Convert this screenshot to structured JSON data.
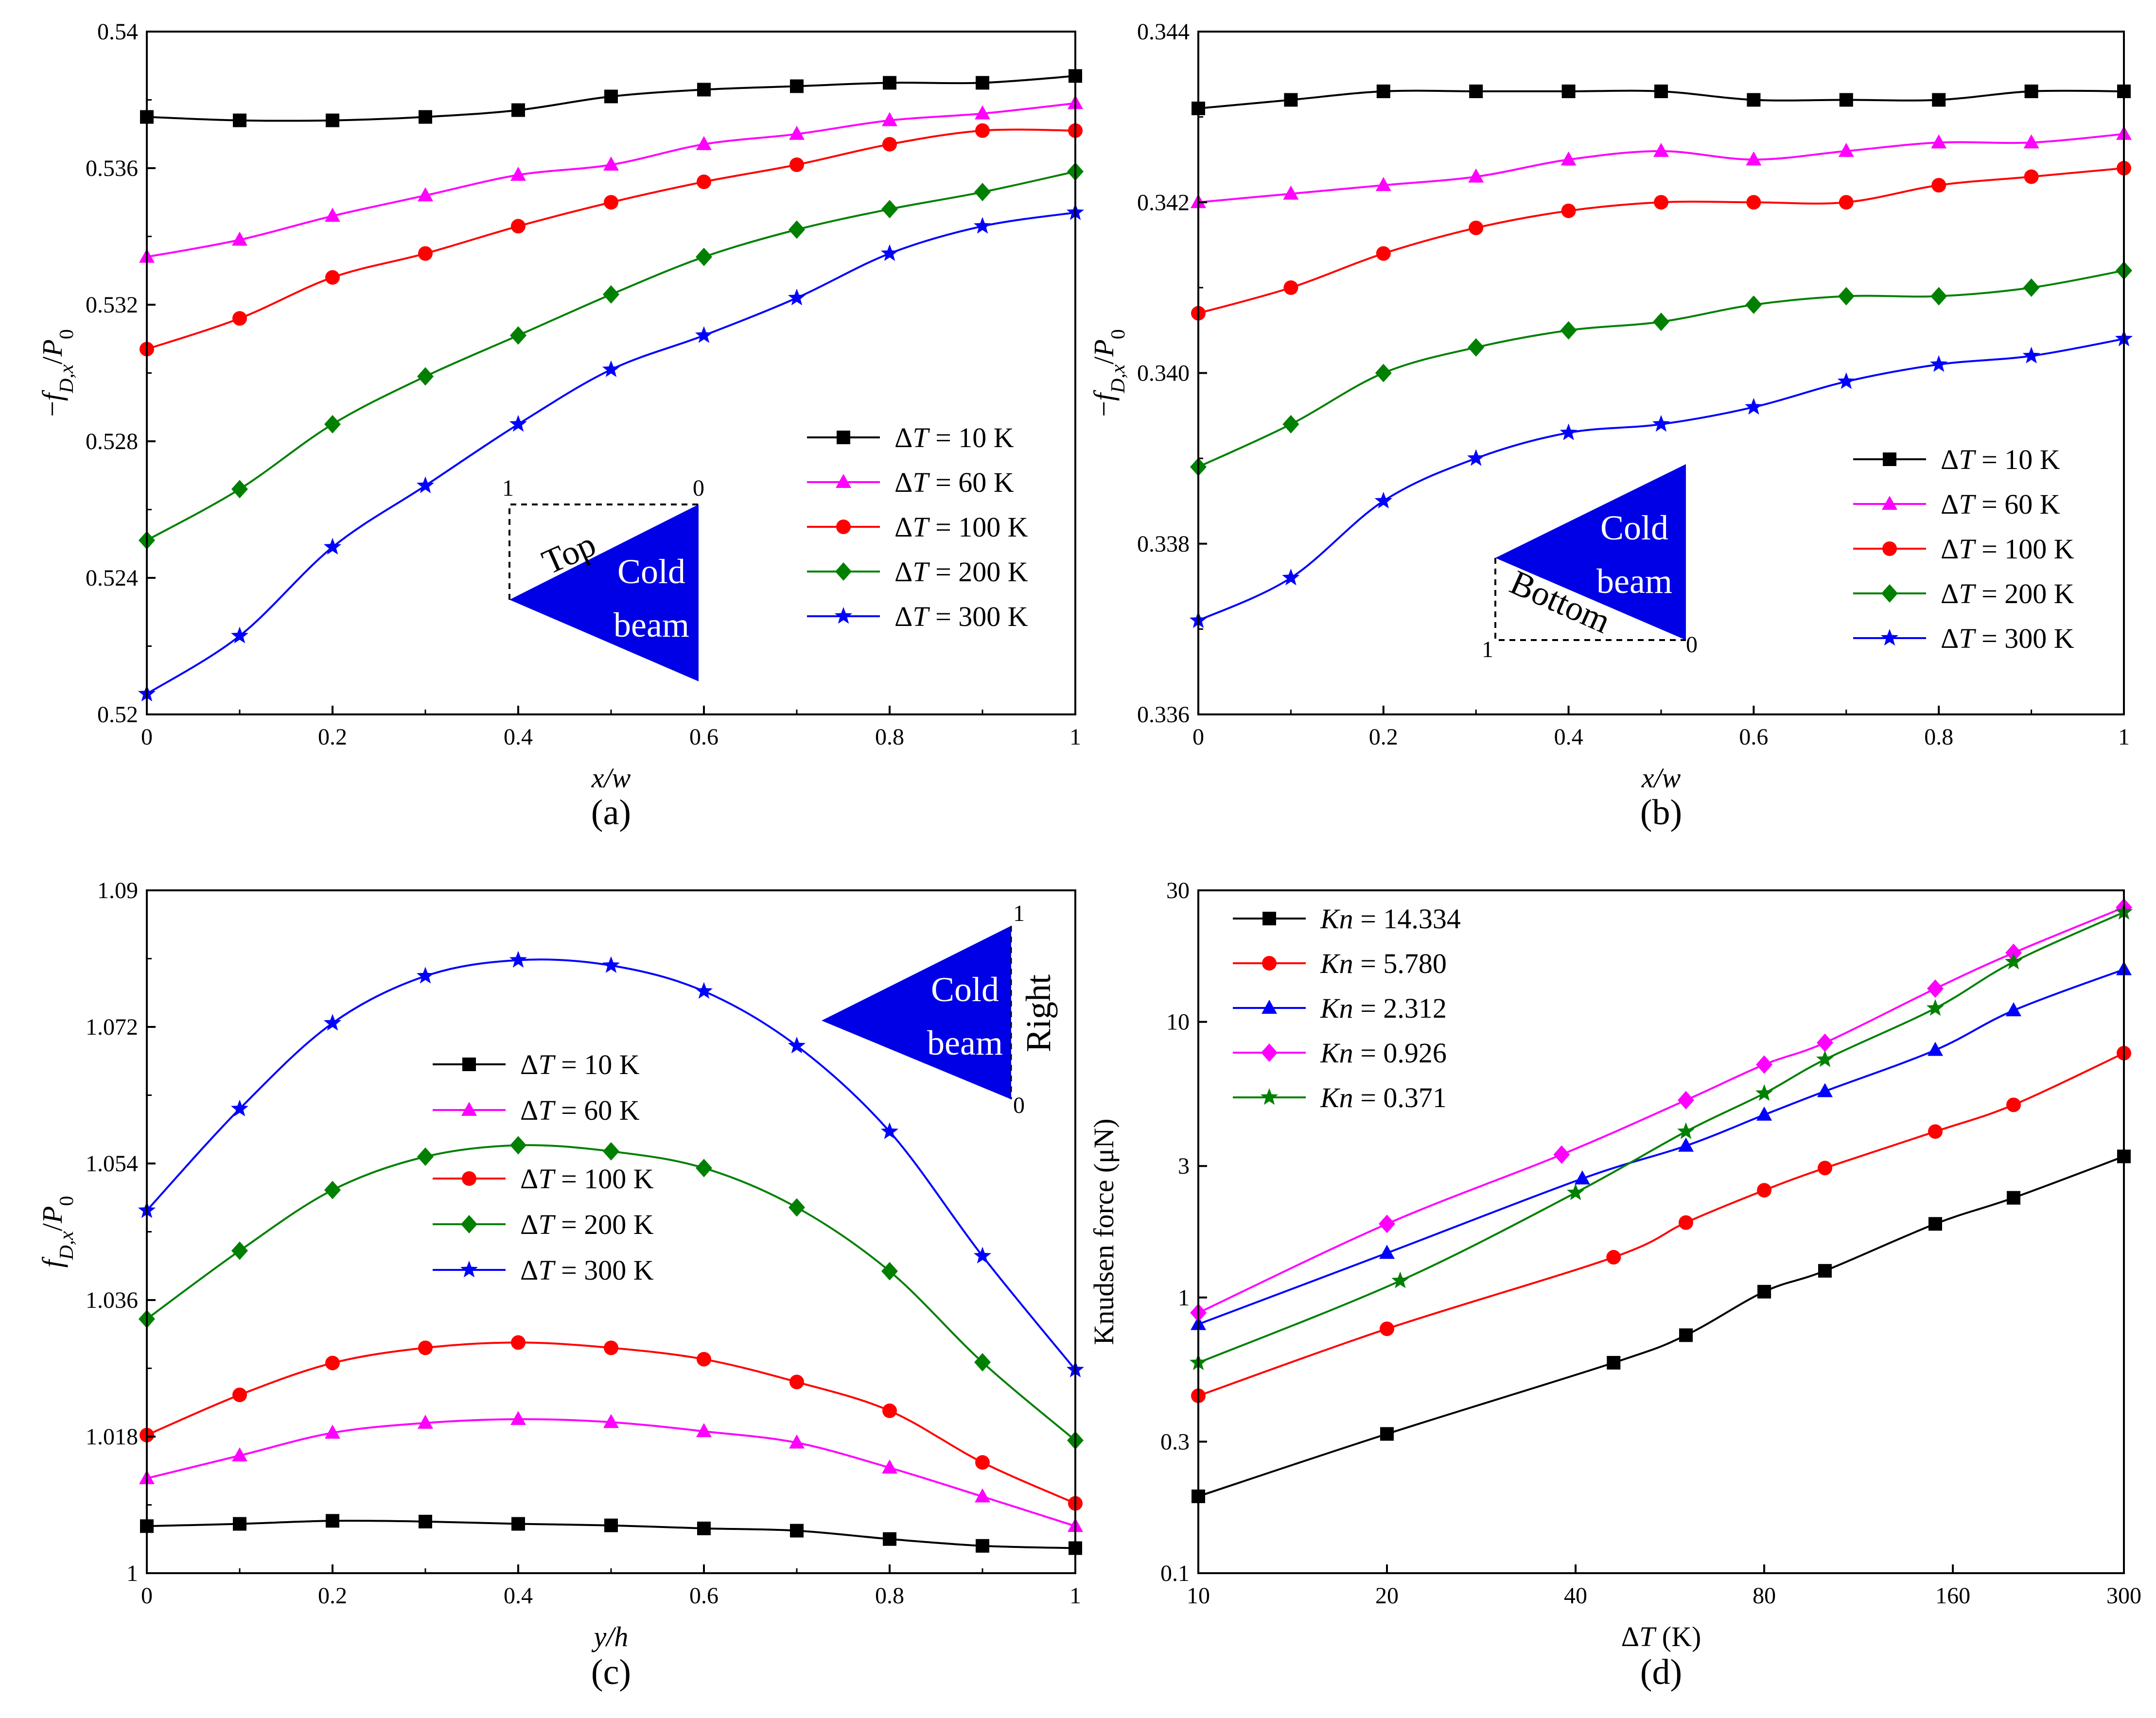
{
  "chart_data": [
    {
      "panel": "a",
      "type": "line",
      "panel_label": "(a)",
      "xlabel": "x/w",
      "ylabel": "−f_D,x/P_0",
      "xlim": [
        0,
        1
      ],
      "ylim": [
        0.52,
        0.54
      ],
      "xticks": [
        0,
        0.2,
        0.4,
        0.6,
        0.8,
        1
      ],
      "xtick_labels": [
        "0",
        "0.2",
        "0.4",
        "0.6",
        "0.8",
        "1"
      ],
      "yticks": [
        0.52,
        0.524,
        0.528,
        0.532,
        0.536,
        0.54
      ],
      "ytick_labels": [
        "0.52",
        "0.524",
        "0.528",
        "0.532",
        "0.536",
        "0.54"
      ],
      "x": [
        0,
        0.1,
        0.2,
        0.3,
        0.4,
        0.5,
        0.6,
        0.7,
        0.8,
        0.9,
        1
      ],
      "series": [
        {
          "name": "ΔT = 10 K",
          "color": "#000000",
          "marker": "square",
          "values": [
            0.5375,
            0.5374,
            0.5374,
            0.5375,
            0.5377,
            0.5381,
            0.5383,
            0.5384,
            0.5385,
            0.5385,
            0.5387
          ]
        },
        {
          "name": "ΔT = 60 K",
          "color": "#ff00ff",
          "marker": "triangle",
          "values": [
            0.5334,
            0.5339,
            0.5346,
            0.5352,
            0.5358,
            0.5361,
            0.5367,
            0.537,
            0.5374,
            0.5376,
            0.5379
          ]
        },
        {
          "name": "ΔT = 100 K",
          "color": "#ff0000",
          "marker": "circle",
          "values": [
            0.5307,
            0.5316,
            0.5328,
            0.5335,
            0.5343,
            0.535,
            0.5356,
            0.5361,
            0.5367,
            0.5371,
            0.5371
          ]
        },
        {
          "name": "ΔT = 200 K",
          "color": "#008000",
          "marker": "diamond",
          "values": [
            0.5251,
            0.5266,
            0.5285,
            0.5299,
            0.5311,
            0.5323,
            0.5334,
            0.5342,
            0.5348,
            0.5353,
            0.5359
          ]
        },
        {
          "name": "ΔT = 300 K",
          "color": "#0000ff",
          "marker": "star",
          "values": [
            0.5206,
            0.5223,
            0.5249,
            0.5267,
            0.5285,
            0.5301,
            0.5311,
            0.5322,
            0.5335,
            0.5343,
            0.5347
          ]
        }
      ],
      "legend_position": "lower-right",
      "inset": {
        "texts": [
          "Top",
          "Cold",
          "beam",
          "1",
          "0"
        ]
      }
    },
    {
      "panel": "b",
      "type": "line",
      "panel_label": "(b)",
      "xlabel": "x/w",
      "ylabel": "−f_D,x/P_0",
      "xlim": [
        0,
        1
      ],
      "ylim": [
        0.336,
        0.344
      ],
      "xticks": [
        0,
        0.2,
        0.4,
        0.6,
        0.8,
        1
      ],
      "xtick_labels": [
        "0",
        "0.2",
        "0.4",
        "0.6",
        "0.8",
        "1"
      ],
      "yticks": [
        0.336,
        0.338,
        0.34,
        0.342,
        0.344
      ],
      "ytick_labels": [
        "0.336",
        "0.338",
        "0.340",
        "0.342",
        "0.344"
      ],
      "x": [
        0,
        0.1,
        0.2,
        0.3,
        0.4,
        0.5,
        0.6,
        0.7,
        0.8,
        0.9,
        1
      ],
      "series": [
        {
          "name": "ΔT = 10 K",
          "color": "#000000",
          "marker": "square",
          "values": [
            0.3431,
            0.3432,
            0.3433,
            0.3433,
            0.3433,
            0.3433,
            0.3432,
            0.3432,
            0.3432,
            0.3433,
            0.3433
          ]
        },
        {
          "name": "ΔT = 60 K",
          "color": "#ff00ff",
          "marker": "triangle",
          "values": [
            0.342,
            0.3421,
            0.3422,
            0.3423,
            0.3425,
            0.3426,
            0.3425,
            0.3426,
            0.3427,
            0.3427,
            0.3428
          ]
        },
        {
          "name": "ΔT = 100 K",
          "color": "#ff0000",
          "marker": "circle",
          "values": [
            0.3407,
            0.341,
            0.3414,
            0.3417,
            0.3419,
            0.342,
            0.342,
            0.342,
            0.3422,
            0.3423,
            0.3424
          ]
        },
        {
          "name": "ΔT = 200 K",
          "color": "#008000",
          "marker": "diamond",
          "values": [
            0.3389,
            0.3394,
            0.34,
            0.3403,
            0.3405,
            0.3406,
            0.3408,
            0.3409,
            0.3409,
            0.341,
            0.3412
          ]
        },
        {
          "name": "ΔT = 300 K",
          "color": "#0000ff",
          "marker": "star",
          "values": [
            0.3371,
            0.3376,
            0.3385,
            0.339,
            0.3393,
            0.3394,
            0.3396,
            0.3399,
            0.3401,
            0.3402,
            0.3404
          ]
        }
      ],
      "legend_position": "lower-right",
      "inset": {
        "texts": [
          "Cold",
          "beam",
          "Bottom",
          "1",
          "0"
        ]
      }
    },
    {
      "panel": "c",
      "type": "line",
      "panel_label": "(c)",
      "xlabel": "y/h",
      "ylabel": "f_D,x/P_0",
      "xlim": [
        0,
        1
      ],
      "ylim": [
        1,
        1.09
      ],
      "xticks": [
        0,
        0.2,
        0.4,
        0.6,
        0.8,
        1
      ],
      "xtick_labels": [
        "0",
        "0.2",
        "0.4",
        "0.6",
        "0.8",
        "1"
      ],
      "yticks": [
        1,
        1.018,
        1.036,
        1.054,
        1.072,
        1.09
      ],
      "ytick_labels": [
        "1",
        "1.018",
        "1.036",
        "1.054",
        "1.072",
        "1.09"
      ],
      "x": [
        0,
        0.1,
        0.2,
        0.3,
        0.4,
        0.5,
        0.6,
        0.7,
        0.8,
        0.9,
        1
      ],
      "series": [
        {
          "name": "ΔT = 10 K",
          "color": "#000000",
          "marker": "square",
          "values": [
            1.0062,
            1.0065,
            1.0069,
            1.0068,
            1.0065,
            1.0063,
            1.0059,
            1.0056,
            1.0045,
            1.0036,
            1.0033
          ]
        },
        {
          "name": "ΔT = 60 K",
          "color": "#ff00ff",
          "marker": "triangle",
          "values": [
            1.0125,
            1.0155,
            1.0185,
            1.0198,
            1.0203,
            1.0199,
            1.0187,
            1.0172,
            1.0139,
            1.0101,
            1.0062
          ]
        },
        {
          "name": "ΔT = 100 K",
          "color": "#ff0000",
          "marker": "circle",
          "values": [
            1.0182,
            1.0235,
            1.0277,
            1.0297,
            1.0304,
            1.0297,
            1.0282,
            1.0252,
            1.0214,
            1.0146,
            1.0092
          ]
        },
        {
          "name": "ΔT = 200 K",
          "color": "#008000",
          "marker": "diamond",
          "values": [
            1.0335,
            1.0425,
            1.0505,
            1.0549,
            1.0564,
            1.0556,
            1.0534,
            1.0482,
            1.0398,
            1.0278,
            1.0175
          ]
        },
        {
          "name": "ΔT = 300 K",
          "color": "#0000ff",
          "marker": "star",
          "values": [
            1.0478,
            1.0612,
            1.0725,
            1.0787,
            1.0808,
            1.0801,
            1.0767,
            1.0695,
            1.0582,
            1.0418,
            1.0268
          ]
        }
      ],
      "legend_position": "center",
      "inset": {
        "texts": [
          "Cold",
          "beam",
          "Right",
          "1",
          "0"
        ]
      }
    },
    {
      "panel": "d",
      "type": "line",
      "panel_label": "(d)",
      "xlabel": "ΔT (K)",
      "ylabel": "Knudsen force (μN)",
      "xscale": "log",
      "yscale": "log",
      "xlim": [
        10,
        300
      ],
      "ylim": [
        0.1,
        30
      ],
      "xticks": [
        10,
        20,
        40,
        80,
        160,
        300
      ],
      "xtick_labels": [
        "10",
        "20",
        "40",
        "80",
        "160",
        "300"
      ],
      "yticks": [
        0.1,
        0.3,
        1,
        3,
        10,
        30
      ],
      "ytick_labels": [
        "0.1",
        "0.3",
        "1",
        "3",
        "10",
        "30"
      ],
      "series": [
        {
          "name": "Kn = 14.334",
          "color": "#000000",
          "marker": "square",
          "x": [
            10,
            20,
            46,
            60,
            80,
            100,
            150,
            200,
            300
          ],
          "values": [
            0.19,
            0.32,
            0.58,
            0.73,
            1.05,
            1.25,
            1.85,
            2.3,
            3.25
          ]
        },
        {
          "name": "Kn = 5.780",
          "color": "#ff0000",
          "marker": "circle",
          "x": [
            10,
            20,
            46,
            60,
            80,
            100,
            150,
            200,
            300
          ],
          "values": [
            0.44,
            0.77,
            1.4,
            1.87,
            2.45,
            2.95,
            4.0,
            5.0,
            7.7
          ]
        },
        {
          "name": "Kn = 2.312",
          "color": "#0000ff",
          "marker": "triangle",
          "x": [
            10,
            20,
            41,
            60,
            80,
            100,
            150,
            200,
            300
          ],
          "values": [
            0.8,
            1.45,
            2.7,
            3.55,
            4.6,
            5.6,
            7.9,
            11.0,
            15.5
          ]
        },
        {
          "name": "Kn = 0.926",
          "color": "#ff00ff",
          "marker": "diamond",
          "x": [
            10,
            20,
            38,
            60,
            80,
            100,
            150,
            200,
            300
          ],
          "values": [
            0.88,
            1.85,
            3.3,
            5.2,
            7.0,
            8.4,
            13.2,
            17.8,
            26.0
          ]
        },
        {
          "name": "Kn = 0.371",
          "color": "#008000",
          "marker": "star",
          "x": [
            10,
            21,
            40,
            60,
            80,
            100,
            150,
            200,
            300
          ],
          "values": [
            0.58,
            1.15,
            2.4,
            4.0,
            5.5,
            7.3,
            11.2,
            16.5,
            25.0
          ]
        }
      ],
      "legend_position": "top-left"
    }
  ]
}
